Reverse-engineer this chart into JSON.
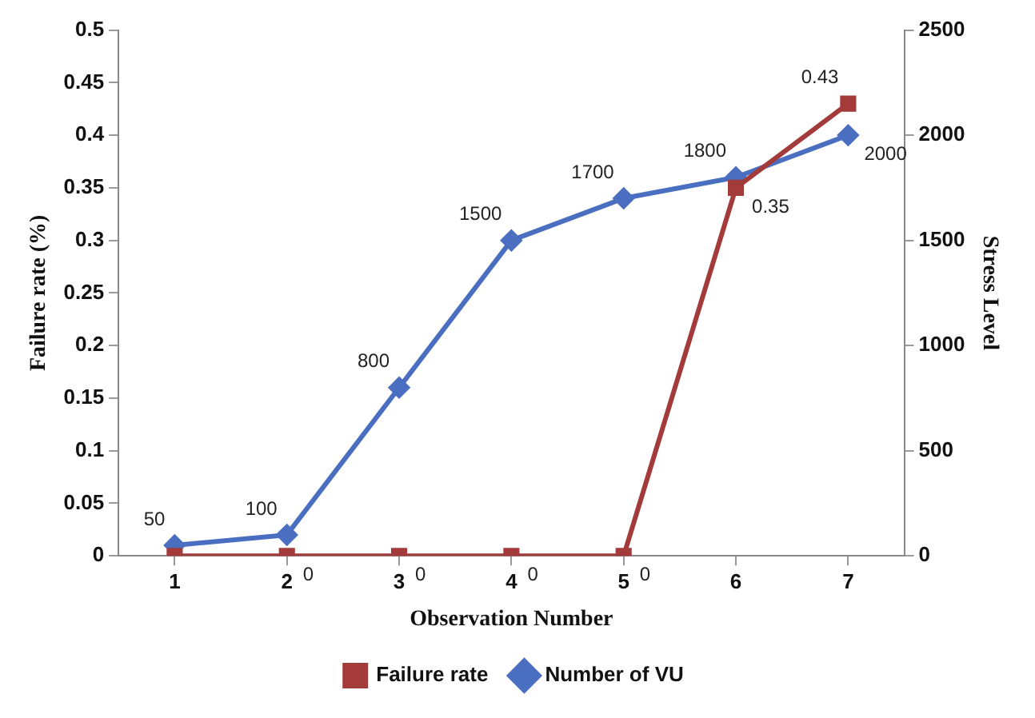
{
  "chart_data": {
    "type": "line",
    "xlabel": "Observation Number",
    "ylabel": "Failure rate (%)",
    "y2label": "Stress Level",
    "categories": [
      "1",
      "2",
      "3",
      "4",
      "5",
      "6",
      "7"
    ],
    "series": [
      {
        "name": "Failure rate",
        "color": "#a33b3a",
        "marker": "square",
        "values": [
          0,
          0,
          0,
          0,
          0,
          0.35,
          0.43
        ],
        "value_labels": [
          null,
          "0",
          "0",
          "0",
          "0",
          "0.35",
          "0.43"
        ]
      },
      {
        "name": "Number of VU",
        "color": "#4a6ec0",
        "marker": "diamond",
        "axis": "y2",
        "values": [
          50,
          100,
          800,
          1500,
          1700,
          1800,
          2000
        ],
        "value_labels": [
          "50",
          "100",
          "800",
          "1500",
          "1700",
          "1800",
          "2000"
        ]
      }
    ],
    "ylim": [
      0,
      0.5
    ],
    "yticks": [
      0,
      0.05,
      0.1,
      0.15,
      0.2,
      0.25,
      0.3,
      0.35,
      0.4,
      0.45,
      0.5
    ],
    "y2lim": [
      0,
      2500
    ],
    "y2ticks": [
      0,
      500,
      1000,
      1500,
      2000,
      2500
    ],
    "grid": false,
    "legend": "bottom",
    "line_style": "solid"
  }
}
